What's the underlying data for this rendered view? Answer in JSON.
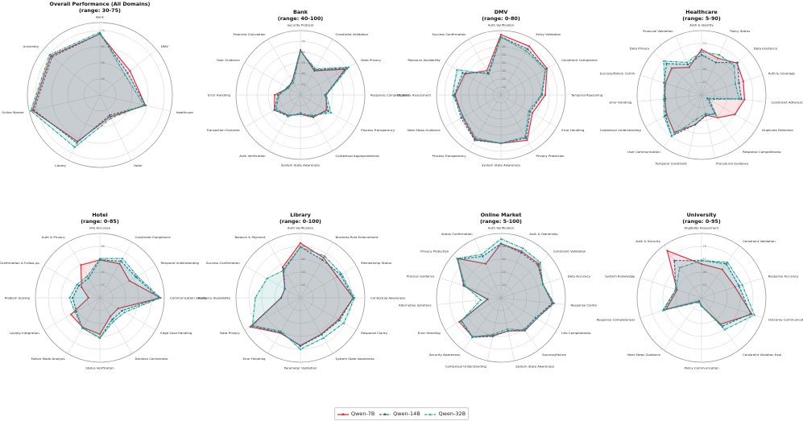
{
  "chart_data": [
    {
      "type": "radar",
      "title": "Overall Performance (All Domains)",
      "subtitle": "(range: 30-75)",
      "rmin": 30,
      "rmax": 75,
      "ticks": [
        40,
        50,
        60,
        70
      ],
      "categories": [
        "Bank",
        "DMV",
        "Healthcare",
        "Hotel",
        "Library",
        "Online Market",
        "University"
      ],
      "series": [
        {
          "name": "Qwen-7B",
          "values": [
            68,
            54,
            59,
            45,
            62,
            73,
            69
          ]
        },
        {
          "name": "Qwen-14B",
          "values": [
            68,
            52,
            59,
            44,
            63,
            72,
            68
          ]
        },
        {
          "name": "Qwen-32B",
          "values": [
            69,
            50,
            58,
            46,
            66,
            74,
            70
          ]
        }
      ]
    },
    {
      "type": "radar",
      "title": "Bank",
      "subtitle": "(range: 40-100)",
      "rmin": 40,
      "rmax": 100,
      "ticks": [
        50,
        60,
        70,
        80,
        90
      ],
      "categories": [
        "Security Protocol",
        "Constraint Validation",
        "Data Privacy",
        "Response Completeness",
        "Process Transparency",
        "Contextual Appropriateness",
        "System State Awareness",
        "Auth Verification",
        "Transaction Outcome",
        "Error Handling",
        "User Guidance",
        "Financial Calculation"
      ],
      "series": [
        {
          "name": "Qwen-7B",
          "values": [
            82,
            66,
            88,
            64,
            68,
            64,
            58,
            62,
            68,
            64,
            53,
            55
          ]
        },
        {
          "name": "Qwen-14B",
          "values": [
            81,
            67,
            90,
            63,
            70,
            63,
            57,
            63,
            68,
            61,
            54,
            55
          ]
        },
        {
          "name": "Qwen-32B",
          "values": [
            81,
            68,
            92,
            64,
            73,
            62,
            58,
            62,
            66,
            60,
            53,
            53
          ]
        }
      ]
    },
    {
      "type": "radar",
      "title": "DMV",
      "subtitle": "(range: 0-80)",
      "rmin": 0,
      "rmax": 80,
      "ticks": [
        10,
        20,
        30,
        40,
        50,
        60,
        70
      ],
      "categories": [
        "Auth Verification",
        "Entry Validation",
        "Constraint Compliance",
        "Temporal Reasoning",
        "Error Handling",
        "Privacy Protection",
        "System State Awareness",
        "Process Transparency",
        "Next Steps Guidance",
        "Eligibility Assessment",
        "Resource Availability",
        "Success Confirmation"
      ],
      "series": [
        {
          "name": "Qwen-7B",
          "values": [
            75,
            70,
            66,
            55,
            45,
            65,
            60,
            64,
            55,
            57,
            52,
            35
          ]
        },
        {
          "name": "Qwen-14B",
          "values": [
            72,
            66,
            64,
            51,
            42,
            62,
            60,
            65,
            57,
            58,
            55,
            32
          ]
        },
        {
          "name": "Qwen-32B",
          "values": [
            72,
            63,
            64,
            50,
            40,
            60,
            60,
            62,
            54,
            60,
            63,
            30
          ]
        }
      ]
    },
    {
      "type": "radar",
      "title": "Healthcare",
      "subtitle": "(range: 5-90)",
      "rmin": 5,
      "rmax": 90,
      "ticks": [
        22,
        39,
        56,
        73
      ],
      "categories": [
        "Auth & Identity",
        "Policy Status",
        "Data Existence",
        "Auth & Coverage",
        "Constraint Adherence",
        "Duplicate Detection",
        "Response Completeness",
        "Procedural Guidance",
        "Temporal Constraint",
        "User Communication",
        "Contextual Understanding",
        "Error Handling",
        "Success/Failure Comm",
        "Data Privacy",
        "Financial Validation"
      ],
      "series": [
        {
          "name": "Qwen-7B",
          "values": [
            65,
            58,
            68,
            63,
            62,
            56,
            42,
            32,
            45,
            66,
            58,
            54,
            55,
            58,
            45
          ]
        },
        {
          "name": "Qwen-14B",
          "values": [
            58,
            52,
            69,
            57,
            58,
            14,
            35,
            33,
            45,
            72,
            60,
            53,
            57,
            67,
            49
          ]
        },
        {
          "name": "Qwen-32B",
          "values": [
            62,
            63,
            63,
            52,
            55,
            17,
            38,
            30,
            38,
            72,
            62,
            55,
            56,
            72,
            52
          ]
        }
      ]
    },
    {
      "type": "radar",
      "title": "Hotel",
      "subtitle": "(range: 0-85)",
      "rmin": 0,
      "rmax": 85,
      "ticks": [
        17,
        34,
        51,
        68
      ],
      "categories": [
        "Info Accuracy",
        "Constraint Compliance",
        "Temporal Understanding",
        "Communication Quality",
        "Edge Case Handling",
        "Decision Correctness",
        "Status Verification",
        "Failure Mode Analysis",
        "Loyalty Integration",
        "Problem Solving",
        "Confirmation & Follow-up",
        "Auth & Privacy"
      ],
      "series": [
        {
          "name": "Qwen-7B",
          "values": [
            50,
            52,
            45,
            80,
            28,
            28,
            48,
            45,
            44,
            15,
            28,
            50
          ]
        },
        {
          "name": "Qwen-14B",
          "values": [
            50,
            56,
            55,
            78,
            34,
            33,
            53,
            46,
            36,
            36,
            32,
            30
          ]
        },
        {
          "name": "Qwen-32B",
          "values": [
            52,
            60,
            57,
            80,
            38,
            36,
            53,
            46,
            38,
            40,
            35,
            33
          ]
        }
      ]
    },
    {
      "type": "radar",
      "title": "Library",
      "subtitle": "(range: 0-100)",
      "rmin": 0,
      "rmax": 100,
      "ticks": [
        20,
        40,
        60,
        80
      ],
      "categories": [
        "Auth Verification",
        "Business Rule Enforcement",
        "Membership Status",
        "Contextual Awareness",
        "Response Clarity",
        "System State Awareness",
        "Parameter Validation",
        "Error Handling",
        "Data Privacy",
        "Resource Availability",
        "Success Confirmation",
        "Balance & Payment"
      ],
      "series": [
        {
          "name": "Qwen-7B",
          "values": [
            85,
            72,
            66,
            82,
            68,
            65,
            74,
            63,
            90,
            30,
            28,
            55
          ]
        },
        {
          "name": "Qwen-14B",
          "values": [
            79,
            68,
            72,
            82,
            70,
            66,
            75,
            62,
            87,
            30,
            28,
            52
          ]
        },
        {
          "name": "Qwen-32B",
          "values": [
            79,
            75,
            74,
            84,
            78,
            72,
            80,
            60,
            86,
            70,
            60,
            50
          ]
        }
      ]
    },
    {
      "type": "radar",
      "title": "Online Market",
      "subtitle": "(range: 5-100)",
      "rmin": 5,
      "rmax": 100,
      "ticks": [
        24,
        43,
        62,
        81
      ],
      "categories": [
        "Auth Verification",
        "Auth & Ownership",
        "Constraint Validation",
        "Data Accuracy",
        "Response Clarity",
        "Info Completeness",
        "Success/Failure",
        "System State Awareness",
        "Contextual Understanding",
        "Security Awareness",
        "Error Handling",
        "Alternative Solutions",
        "Process Guidance",
        "Privacy Protection",
        "Action Confirmation"
      ],
      "series": [
        {
          "name": "Qwen-7B",
          "values": [
            85,
            80,
            80,
            70,
            82,
            66,
            65,
            55,
            62,
            76,
            76,
            25,
            62,
            92,
            60
          ]
        },
        {
          "name": "Qwen-14B",
          "values": [
            85,
            78,
            78,
            70,
            81,
            64,
            63,
            55,
            63,
            77,
            73,
            25,
            63,
            90,
            72
          ]
        },
        {
          "name": "Qwen-32B",
          "values": [
            92,
            85,
            83,
            70,
            84,
            66,
            64,
            52,
            60,
            76,
            72,
            35,
            60,
            92,
            75
          ]
        }
      ]
    },
    {
      "type": "radar",
      "title": "University",
      "subtitle": "(range: 0-95)",
      "rmin": 0,
      "rmax": 95,
      "ticks": [
        19,
        38,
        57,
        76
      ],
      "categories": [
        "Eligibility Assessment",
        "Constraint Validation",
        "Response Accuracy",
        "Outcome Communication",
        "Constraint Violation Expl",
        "Policy Communication",
        "Next Steps Guidance",
        "Response Completeness",
        "System Knowledge",
        "Auth & Security"
      ],
      "series": [
        {
          "name": "Qwen-7B",
          "values": [
            50,
            52,
            52,
            78,
            48,
            12,
            6,
            55,
            38,
            86
          ]
        },
        {
          "name": "Qwen-14B",
          "values": [
            55,
            62,
            58,
            76,
            52,
            12,
            6,
            58,
            40,
            68
          ]
        },
        {
          "name": "Qwen-32B",
          "values": [
            55,
            65,
            63,
            82,
            58,
            12,
            8,
            60,
            40,
            55
          ]
        }
      ]
    }
  ],
  "legend": {
    "items": [
      {
        "name": "Qwen-7B",
        "color": "#e0303f",
        "style": "solid",
        "marker": "circle"
      },
      {
        "name": "Qwen-14B",
        "color": "#2f6f8f",
        "style": "dashed",
        "marker": "square"
      },
      {
        "name": "Qwen-32B",
        "color": "#25a38f",
        "style": "dashdot",
        "marker": "triangle"
      }
    ]
  },
  "colors": {
    "Qwen-7B": "#e0303f",
    "Qwen-14B": "#2f6f8f",
    "Qwen-32B": "#25a38f",
    "fill_overlap": "#9aa0a6"
  }
}
